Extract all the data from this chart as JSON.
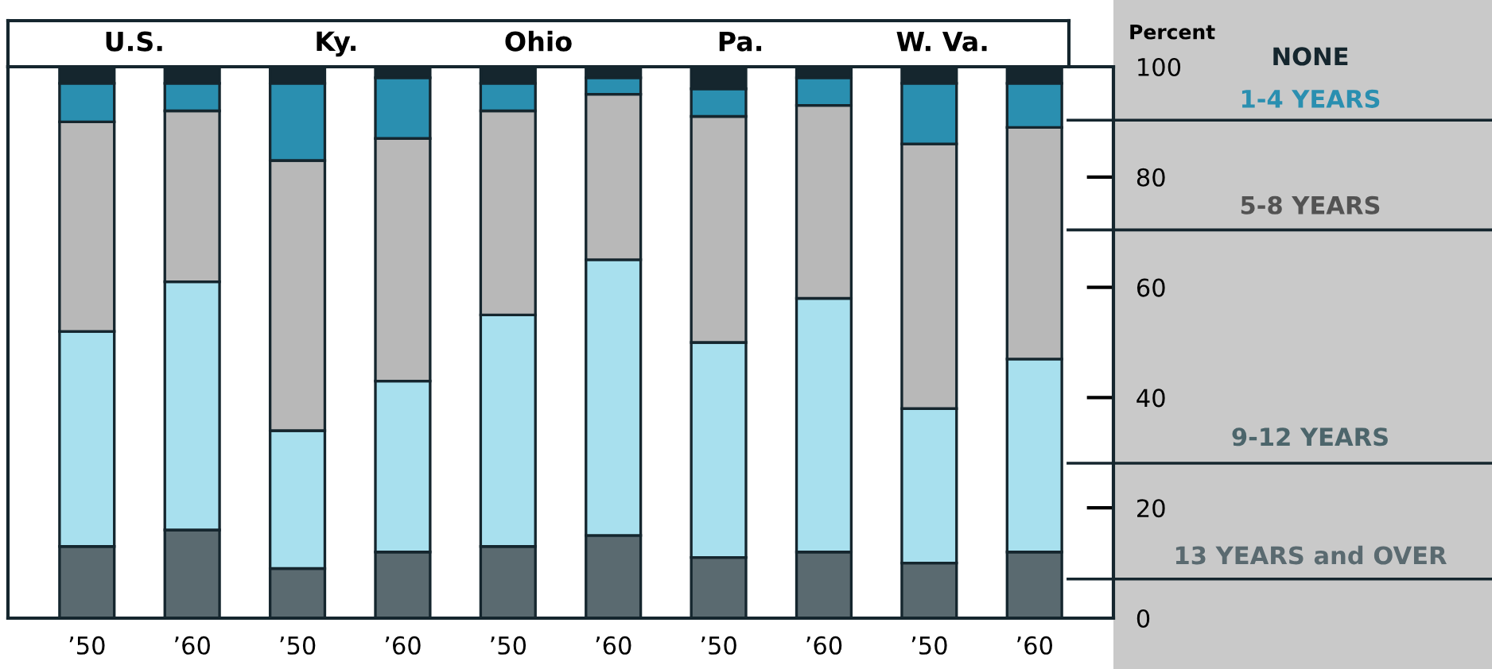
{
  "chart_data": {
    "type": "bar",
    "stacked": true,
    "legend": "right",
    "ylabel": "Percent",
    "categories": [
      "’50",
      "’60",
      "’50",
      "’60",
      "’50",
      "’60",
      "’50",
      "’60",
      "’50",
      "’60"
    ],
    "annotations": [
      "U.S.",
      "Ky.",
      "Ohio",
      "Pa.",
      "W. Va."
    ],
    "series": [
      {
        "name": "13 YEARS and OVER",
        "color": "#5a6a70",
        "values": [
          13,
          16,
          9,
          12,
          13,
          15,
          11,
          12,
          10,
          12
        ]
      },
      {
        "name": "9-12 YEARS",
        "color": "#a8e0ee",
        "values": [
          39,
          45,
          25,
          31,
          42,
          50,
          39,
          46,
          28,
          35
        ]
      },
      {
        "name": "5-8 YEARS",
        "color": "#b8b8b8",
        "values": [
          38,
          31,
          49,
          44,
          37,
          30,
          41,
          35,
          48,
          42
        ]
      },
      {
        "name": "1-4 YEARS",
        "color": "#2a8fb0",
        "values": [
          7,
          5,
          14,
          11,
          5,
          3,
          5,
          5,
          11,
          8
        ]
      },
      {
        "name": "NONE",
        "color": "#15262e",
        "values": [
          3,
          3,
          3,
          2,
          3,
          2,
          4,
          2,
          3,
          3
        ]
      }
    ],
    "ylim": [
      0,
      100
    ],
    "yticks": [
      0,
      20,
      40,
      60,
      80,
      100
    ],
    "grid": false
  }
}
